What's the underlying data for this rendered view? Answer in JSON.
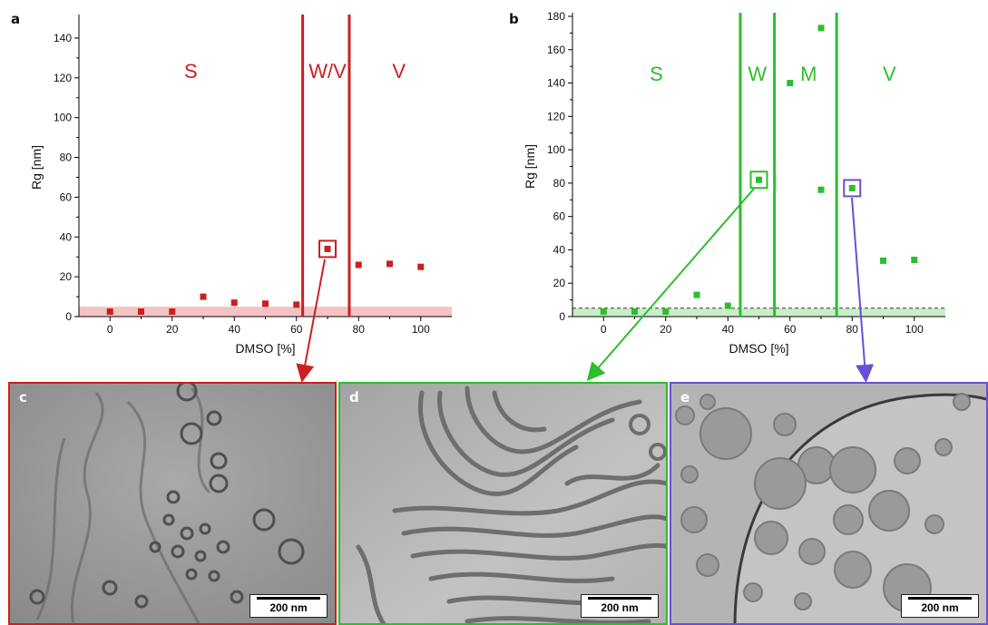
{
  "chart_data": [
    {
      "panel": "a",
      "type": "scatter",
      "xlabel": "DMSO [%]",
      "ylabel": "Rg [nm]",
      "xlim": [
        -10,
        110
      ],
      "ylim": [
        0,
        150
      ],
      "xticks": [
        0,
        20,
        40,
        60,
        80,
        100
      ],
      "yticks": [
        0,
        20,
        40,
        60,
        80,
        100,
        120,
        140
      ],
      "color": "#cc1f1f",
      "points": [
        {
          "x": 0,
          "y": 2.5
        },
        {
          "x": 10,
          "y": 2.5
        },
        {
          "x": 20,
          "y": 2.5
        },
        {
          "x": 30,
          "y": 10
        },
        {
          "x": 40,
          "y": 7
        },
        {
          "x": 50,
          "y": 6.5
        },
        {
          "x": 60,
          "y": 6
        },
        {
          "x": 70,
          "y": 34
        },
        {
          "x": 80,
          "y": 26
        },
        {
          "x": 90,
          "y": 26.5
        },
        {
          "x": 100,
          "y": 25
        }
      ],
      "highlight_x": 70,
      "band": {
        "y0": 0,
        "y1": 5,
        "color": "#f6c3c3"
      },
      "vlines": [
        62,
        77
      ],
      "regions": [
        {
          "label": "S",
          "x": 26
        },
        {
          "label": "W/V",
          "x": 70
        },
        {
          "label": "V",
          "x": 93
        }
      ]
    },
    {
      "panel": "b",
      "type": "scatter",
      "xlabel": "DMSO [%]",
      "ylabel": "Rg [nm]",
      "xlim": [
        -10,
        110
      ],
      "ylim": [
        0,
        180
      ],
      "xticks": [
        0,
        20,
        40,
        60,
        80,
        100
      ],
      "yticks": [
        0,
        20,
        40,
        60,
        80,
        100,
        120,
        140,
        160,
        180
      ],
      "color": "#2bbf2b",
      "points": [
        {
          "x": 0,
          "y": 3
        },
        {
          "x": 10,
          "y": 3
        },
        {
          "x": 20,
          "y": 3
        },
        {
          "x": 30,
          "y": 13
        },
        {
          "x": 40,
          "y": 6.5
        },
        {
          "x": 50,
          "y": 82
        },
        {
          "x": 60,
          "y": 140
        },
        {
          "x": 70,
          "y": 173
        },
        {
          "x": 70,
          "y": 76
        },
        {
          "x": 80,
          "y": 77
        },
        {
          "x": 90,
          "y": 33.5
        },
        {
          "x": 100,
          "y": 34
        }
      ],
      "highlight_x": [
        50,
        80
      ],
      "band": {
        "y0": 0,
        "y1": 5,
        "color": "#c9eec9",
        "dashed_line_y": 5
      },
      "vlines": [
        44,
        55,
        75
      ],
      "regions": [
        {
          "label": "S",
          "x": 17
        },
        {
          "label": "W",
          "x": 49.5
        },
        {
          "label": "M",
          "x": 66
        },
        {
          "label": "V",
          "x": 92
        }
      ]
    }
  ],
  "panels": {
    "a": "a",
    "b": "b"
  },
  "micrographs": [
    {
      "label": "c",
      "scale": "200 nm",
      "border": "#cc1f1f"
    },
    {
      "label": "d",
      "scale": "200 nm",
      "border": "#2bbf2b"
    },
    {
      "label": "e",
      "scale": "200 nm",
      "border": "#6a4fd6"
    }
  ]
}
